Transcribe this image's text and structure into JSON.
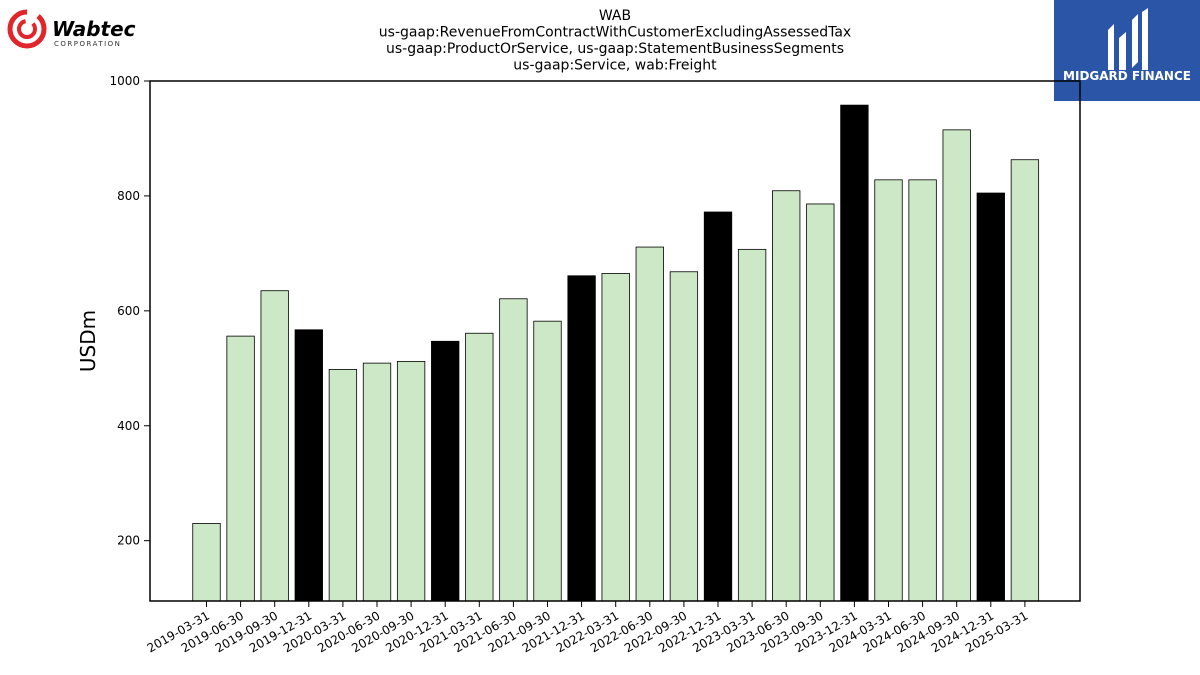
{
  "logos": {
    "left": {
      "icon": "wabtec-logo-icon",
      "wordmark": "Wabtec",
      "subtitle": "CORPORATION",
      "color": "#e0262b"
    },
    "right": {
      "icon": "midgard-logo-icon",
      "text": "MIDGARD FINANCE",
      "background": "#2b56a8"
    }
  },
  "chart_data": {
    "type": "bar",
    "title": [
      "WAB",
      "us-gaap:RevenueFromContractWithCustomerExcludingAssessedTax",
      "us-gaap:ProductOrService, us-gaap:StatementBusinessSegments",
      "us-gaap:Service, wab:Freight"
    ],
    "xlabel": "",
    "ylabel": "USDm",
    "ylim": [
      95,
      1000
    ],
    "yticks": [
      200,
      400,
      600,
      800,
      1000
    ],
    "grid": false,
    "categories": [
      "2019-03-31",
      "2019-06-30",
      "2019-09-30",
      "2019-12-31",
      "2020-03-31",
      "2020-06-30",
      "2020-09-30",
      "2020-12-31",
      "2021-03-31",
      "2021-06-30",
      "2021-09-30",
      "2021-12-31",
      "2022-03-31",
      "2022-06-30",
      "2022-09-30",
      "2022-12-31",
      "2023-03-31",
      "2023-06-30",
      "2023-09-30",
      "2023-12-31",
      "2024-03-31",
      "2024-06-30",
      "2024-09-30",
      "2024-12-31",
      "2025-03-31"
    ],
    "values": [
      230,
      556,
      635,
      567,
      498,
      509,
      512,
      547,
      561,
      621,
      582,
      661,
      665,
      711,
      668,
      772,
      707,
      809,
      786,
      958,
      828,
      828,
      915,
      805,
      863
    ],
    "colors": {
      "quarter": "#cde8c6",
      "year_end": "#000000",
      "edge": "#000000"
    }
  }
}
